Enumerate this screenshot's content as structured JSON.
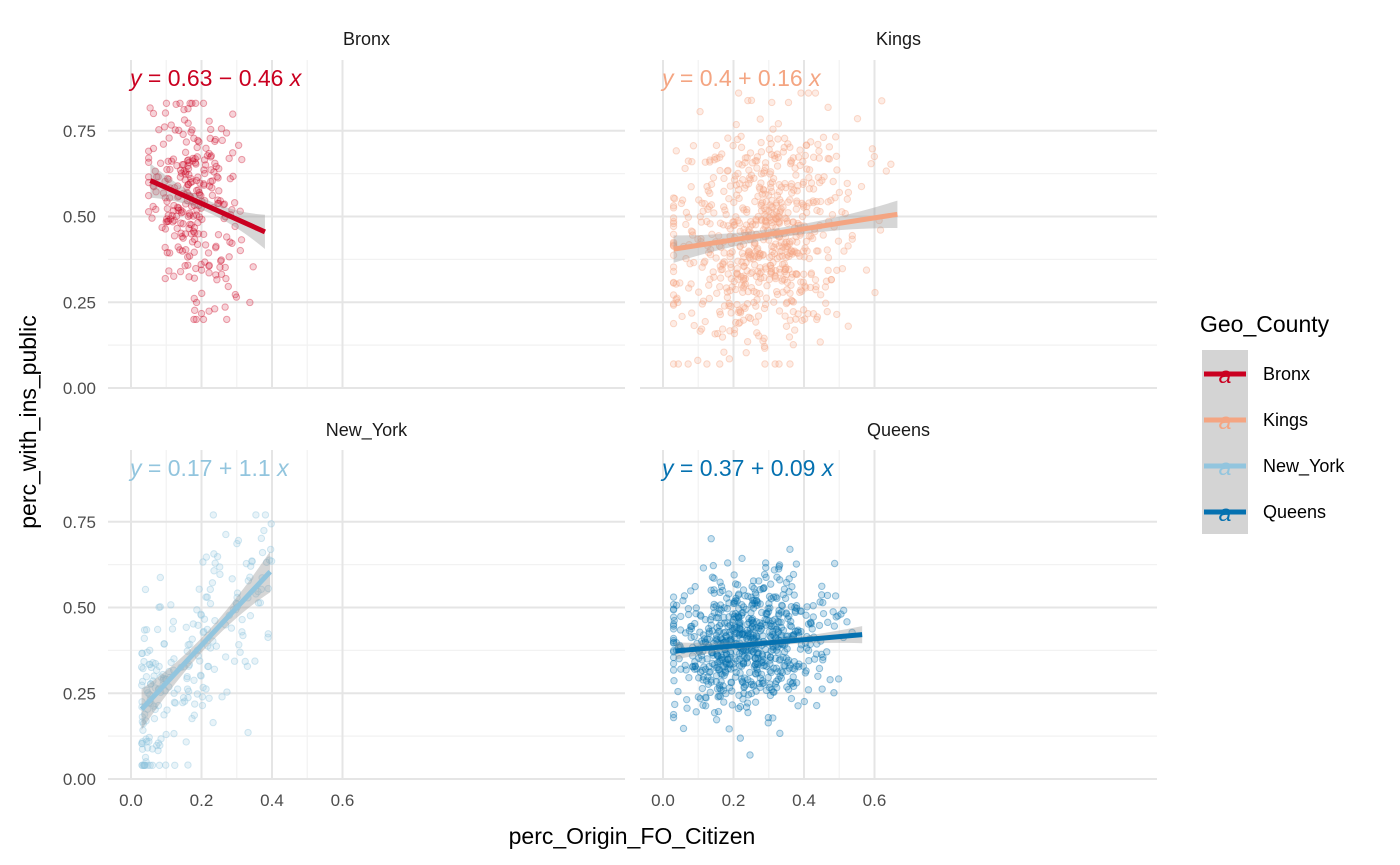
{
  "chart_data": {
    "type": "scatter",
    "layout": "facet_wrap 2x2",
    "xlabel": "perc_Origin_FO_Citizen",
    "ylabel": "perc_with_ins_public",
    "xlim": [
      0,
      0.7
    ],
    "ylim": [
      0,
      0.9
    ],
    "x_ticks": [
      "0.0",
      "0.2",
      "0.4",
      "0.6"
    ],
    "y_ticks": [
      "0.00",
      "0.25",
      "0.50",
      "0.75"
    ],
    "x_tick_values": [
      0,
      0.2,
      0.4,
      0.6
    ],
    "y_tick_values": [
      0,
      0.25,
      0.5,
      0.75
    ],
    "grid": true,
    "legend": {
      "title": "Geo_County",
      "position": "right",
      "key_glyph": "a",
      "items": [
        "Bronx",
        "Kings",
        "New_York",
        "Queens"
      ]
    },
    "panels": [
      {
        "name": "Bronx",
        "color": "#ca0020",
        "point_opacity": 0.25,
        "n_points": 280,
        "x_range": [
          0.05,
          0.38
        ],
        "point_y_range": [
          0.2,
          0.83
        ],
        "fit": {
          "intercept": 0.63,
          "slope": -0.46,
          "x_from": 0.055,
          "x_to": 0.38,
          "se_halfwidth_ends": 0.05
        },
        "equation": {
          "lhs": "y",
          "eq": " = ",
          "body": "0.63 − 0.46 ",
          "var": "x"
        }
      },
      {
        "name": "Kings",
        "color": "#f4a582",
        "point_opacity": 0.3,
        "n_points": 700,
        "x_range": [
          0.03,
          0.67
        ],
        "point_y_range": [
          0.07,
          0.86
        ],
        "fit": {
          "intercept": 0.4,
          "slope": 0.16,
          "x_from": 0.03,
          "x_to": 0.665,
          "se_halfwidth_ends": 0.04
        },
        "equation": {
          "lhs": "y",
          "eq": " = ",
          "body": "0.4 + 0.16 ",
          "var": "x"
        }
      },
      {
        "name": "New_York",
        "color": "#92c5de",
        "point_opacity": 0.3,
        "n_points": 230,
        "x_range": [
          0.03,
          0.4
        ],
        "point_y_range": [
          0.04,
          0.77
        ],
        "fit": {
          "intercept": 0.17,
          "slope": 1.1,
          "x_from": 0.03,
          "x_to": 0.395,
          "se_halfwidth_ends": 0.06
        },
        "equation": {
          "lhs": "y",
          "eq": " = ",
          "body": "0.17 + 1.1 ",
          "var": "x"
        }
      },
      {
        "name": "Queens",
        "color": "#0571b0",
        "point_opacity": 0.3,
        "n_points": 720,
        "x_range": [
          0.03,
          0.57
        ],
        "point_y_range": [
          0.07,
          0.82
        ],
        "fit": {
          "intercept": 0.37,
          "slope": 0.09,
          "x_from": 0.035,
          "x_to": 0.565,
          "se_halfwidth_ends": 0.025
        },
        "equation": {
          "lhs": "y",
          "eq": " = ",
          "body": "0.37 + 0.09 ",
          "var": "x"
        }
      }
    ]
  }
}
